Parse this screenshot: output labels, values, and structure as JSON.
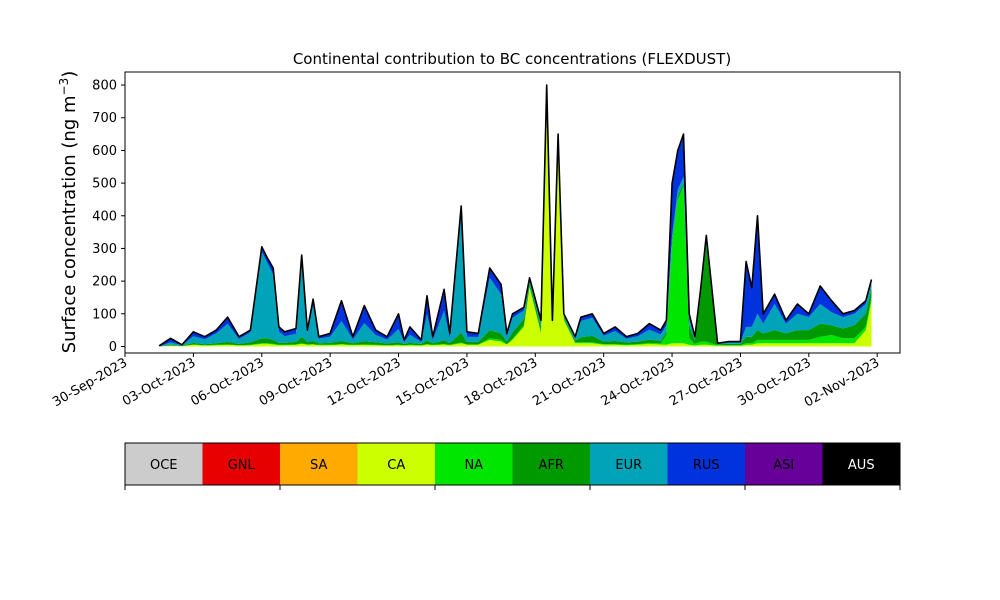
{
  "chart_data": {
    "type": "area",
    "stacked": true,
    "title": "Continental contribution to BC concentrations (FLEXDUST)",
    "ylabel": "Surface concentration (ng m",
    "ylabel_superscript": "−3",
    "ylabel_suffix": ")",
    "x_range": [
      "2023-09-30",
      "2023-11-03"
    ],
    "ylim": [
      -20,
      840
    ],
    "y_ticks": [
      0,
      100,
      200,
      300,
      400,
      500,
      600,
      700,
      800
    ],
    "x_ticks": [
      "2023-09-30",
      "2023-10-03",
      "2023-10-06",
      "2023-10-09",
      "2023-10-12",
      "2023-10-15",
      "2023-10-18",
      "2023-10-21",
      "2023-10-24",
      "2023-10-27",
      "2023-10-30",
      "2023-11-02"
    ],
    "x_tick_labels": [
      "30-Sep-2023",
      "03-Oct-2023",
      "06-Oct-2023",
      "09-Oct-2023",
      "12-Oct-2023",
      "15-Oct-2023",
      "18-Oct-2023",
      "21-Oct-2023",
      "24-Oct-2023",
      "27-Oct-2023",
      "30-Oct-2023",
      "02-Nov-2023"
    ],
    "grid": false,
    "legend": {
      "placement": "colorbar-below",
      "labels": [
        "OCE",
        "GNL",
        "SA",
        "CA",
        "NA",
        "AFR",
        "EUR",
        "RUS",
        "ASI",
        "AUS"
      ],
      "colors": [
        "#cccccc",
        "#e60000",
        "#ffaa00",
        "#ccff00",
        "#00e600",
        "#009900",
        "#00a3b8",
        "#0033dd",
        "#660099",
        "#000000"
      ]
    },
    "total_line_color": "#000000",
    "points": [
      [
        "2023-10-01T12:00",
        2,
        0,
        0,
        0,
        0,
        0,
        0,
        0,
        0,
        2
      ],
      [
        "2023-10-02T00:00",
        25,
        0,
        0,
        0,
        3,
        0,
        2,
        8,
        10,
        2
      ],
      [
        "2023-10-02T12:00",
        5,
        0,
        0,
        0,
        1,
        0,
        1,
        2,
        1,
        0
      ],
      [
        "2023-10-03T00:00",
        45,
        0,
        0,
        0,
        5,
        1,
        5,
        20,
        12,
        2
      ],
      [
        "2023-10-03T12:00",
        30,
        0,
        0,
        0,
        3,
        1,
        3,
        15,
        8,
        0
      ],
      [
        "2023-10-04T00:00",
        50,
        0,
        0,
        0,
        4,
        1,
        5,
        30,
        8,
        2
      ],
      [
        "2023-10-04T12:00",
        90,
        0,
        0,
        0,
        5,
        1,
        8,
        55,
        20,
        1
      ],
      [
        "2023-10-05T00:00",
        30,
        0,
        0,
        0,
        3,
        1,
        4,
        15,
        7,
        0
      ],
      [
        "2023-10-05T12:00",
        50,
        0,
        0,
        0,
        4,
        1,
        8,
        30,
        7,
        0
      ],
      [
        "2023-10-06T00:00",
        305,
        0,
        0,
        0,
        8,
        2,
        15,
        265,
        15,
        0
      ],
      [
        "2023-10-06T06:00",
        270,
        0,
        0,
        0,
        8,
        2,
        15,
        230,
        15,
        0
      ],
      [
        "2023-10-06T12:00",
        240,
        0,
        0,
        0,
        6,
        2,
        12,
        200,
        20,
        0
      ],
      [
        "2023-10-06T18:00",
        60,
        0,
        0,
        0,
        4,
        1,
        6,
        35,
        14,
        0
      ],
      [
        "2023-10-07T00:00",
        45,
        0,
        0,
        0,
        4,
        1,
        6,
        20,
        14,
        0
      ],
      [
        "2023-10-07T12:00",
        55,
        0,
        0,
        0,
        5,
        1,
        8,
        25,
        16,
        0
      ],
      [
        "2023-10-07T18:00",
        280,
        0,
        0,
        0,
        8,
        2,
        20,
        230,
        20,
        0
      ],
      [
        "2023-10-08T00:00",
        50,
        0,
        0,
        0,
        5,
        1,
        8,
        26,
        10,
        0
      ],
      [
        "2023-10-08T06:00",
        145,
        0,
        0,
        0,
        6,
        1,
        10,
        110,
        18,
        0
      ],
      [
        "2023-10-08T12:00",
        30,
        0,
        0,
        0,
        4,
        1,
        5,
        14,
        6,
        0
      ],
      [
        "2023-10-09T00:00",
        40,
        0,
        0,
        0,
        4,
        1,
        6,
        19,
        10,
        0
      ],
      [
        "2023-10-09T12:00",
        140,
        0,
        0,
        0,
        6,
        1,
        10,
        60,
        63,
        0
      ],
      [
        "2023-10-10T00:00",
        30,
        0,
        0,
        0,
        4,
        1,
        5,
        12,
        8,
        0
      ],
      [
        "2023-10-10T12:00",
        125,
        0,
        0,
        0,
        5,
        1,
        10,
        55,
        54,
        0
      ],
      [
        "2023-10-11T00:00",
        50,
        0,
        0,
        0,
        4,
        1,
        8,
        22,
        15,
        0
      ],
      [
        "2023-10-11T12:00",
        30,
        0,
        0,
        0,
        3,
        1,
        5,
        12,
        9,
        0
      ],
      [
        "2023-10-12T00:00",
        100,
        0,
        0,
        0,
        4,
        1,
        8,
        40,
        47,
        0
      ],
      [
        "2023-10-12T06:00",
        20,
        0,
        0,
        0,
        3,
        1,
        4,
        6,
        6,
        0
      ],
      [
        "2023-10-12T12:00",
        60,
        0,
        0,
        0,
        4,
        1,
        6,
        25,
        24,
        0
      ],
      [
        "2023-10-13T00:00",
        20,
        0,
        0,
        0,
        3,
        1,
        4,
        6,
        6,
        0
      ],
      [
        "2023-10-13T06:00",
        155,
        0,
        0,
        0,
        6,
        1,
        12,
        80,
        56,
        0
      ],
      [
        "2023-10-13T12:00",
        30,
        0,
        0,
        0,
        4,
        1,
        5,
        10,
        10,
        0
      ],
      [
        "2023-10-14T00:00",
        175,
        0,
        0,
        0,
        6,
        1,
        12,
        90,
        66,
        0
      ],
      [
        "2023-10-14T06:00",
        40,
        0,
        0,
        0,
        4,
        1,
        6,
        14,
        15,
        0
      ],
      [
        "2023-10-14T18:00",
        430,
        0,
        0,
        0,
        10,
        2,
        30,
        360,
        28,
        0
      ],
      [
        "2023-10-15T00:00",
        45,
        0,
        0,
        0,
        5,
        1,
        8,
        16,
        15,
        0
      ],
      [
        "2023-10-15T12:00",
        40,
        0,
        0,
        0,
        5,
        1,
        8,
        15,
        11,
        0
      ],
      [
        "2023-10-16T00:00",
        240,
        0,
        0,
        0,
        20,
        5,
        25,
        160,
        30,
        0
      ],
      [
        "2023-10-16T12:00",
        190,
        0,
        0,
        0,
        15,
        5,
        20,
        120,
        30,
        0
      ],
      [
        "2023-10-16T18:00",
        40,
        0,
        0,
        0,
        6,
        1,
        8,
        15,
        10,
        0
      ],
      [
        "2023-10-17T00:00",
        100,
        0,
        0,
        0,
        20,
        3,
        20,
        45,
        12,
        0
      ],
      [
        "2023-10-17T12:00",
        120,
        0,
        0,
        0,
        60,
        5,
        20,
        25,
        10,
        0
      ],
      [
        "2023-10-17T18:00",
        210,
        0,
        0,
        0,
        180,
        5,
        10,
        10,
        5,
        0
      ],
      [
        "2023-10-18T06:00",
        80,
        0,
        0,
        0,
        40,
        5,
        15,
        15,
        5,
        0
      ],
      [
        "2023-10-18T12:00",
        800,
        0,
        0,
        0,
        780,
        5,
        5,
        5,
        5,
        0
      ],
      [
        "2023-10-18T18:00",
        80,
        0,
        0,
        0,
        60,
        5,
        5,
        5,
        5,
        0
      ],
      [
        "2023-10-19T00:00",
        650,
        0,
        0,
        0,
        630,
        5,
        5,
        5,
        5,
        0
      ],
      [
        "2023-10-19T06:00",
        100,
        0,
        0,
        0,
        80,
        5,
        5,
        5,
        5,
        0
      ],
      [
        "2023-10-19T18:00",
        30,
        0,
        0,
        0,
        10,
        3,
        5,
        6,
        6,
        0
      ],
      [
        "2023-10-20T00:00",
        90,
        0,
        0,
        0,
        10,
        3,
        15,
        50,
        12,
        0
      ],
      [
        "2023-10-20T12:00",
        100,
        0,
        0,
        0,
        10,
        3,
        20,
        55,
        12,
        0
      ],
      [
        "2023-10-21T00:00",
        40,
        0,
        0,
        0,
        5,
        2,
        8,
        18,
        7,
        0
      ],
      [
        "2023-10-21T12:00",
        60,
        0,
        0,
        0,
        5,
        2,
        10,
        30,
        13,
        0
      ],
      [
        "2023-10-22T00:00",
        30,
        0,
        0,
        0,
        4,
        2,
        6,
        12,
        6,
        0
      ],
      [
        "2023-10-22T12:00",
        40,
        0,
        0,
        0,
        5,
        2,
        8,
        16,
        9,
        0
      ],
      [
        "2023-10-23T00:00",
        70,
        0,
        0,
        0,
        8,
        3,
        10,
        30,
        19,
        0
      ],
      [
        "2023-10-23T12:00",
        50,
        0,
        0,
        0,
        6,
        3,
        8,
        20,
        13,
        0
      ],
      [
        "2023-10-23T18:00",
        80,
        0,
        0,
        0,
        5,
        30,
        10,
        20,
        15,
        0
      ],
      [
        "2023-10-24T00:00",
        500,
        0,
        0,
        0,
        10,
        300,
        10,
        20,
        160,
        0
      ],
      [
        "2023-10-24T06:00",
        600,
        0,
        0,
        0,
        10,
        440,
        10,
        20,
        120,
        0
      ],
      [
        "2023-10-24T12:00",
        650,
        0,
        0,
        0,
        10,
        480,
        10,
        20,
        130,
        0
      ],
      [
        "2023-10-24T18:00",
        100,
        0,
        0,
        0,
        5,
        20,
        40,
        20,
        15,
        0
      ],
      [
        "2023-10-25T00:00",
        30,
        0,
        0,
        0,
        3,
        5,
        10,
        6,
        6,
        0
      ],
      [
        "2023-10-25T06:00",
        175,
        0,
        0,
        0,
        5,
        10,
        140,
        10,
        10,
        0
      ],
      [
        "2023-10-25T12:00",
        340,
        0,
        0,
        0,
        5,
        10,
        300,
        15,
        10,
        0
      ],
      [
        "2023-10-26T00:00",
        10,
        0,
        0,
        0,
        2,
        2,
        3,
        2,
        1,
        0
      ],
      [
        "2023-10-26T12:00",
        15,
        0,
        0,
        0,
        2,
        2,
        4,
        4,
        3,
        0
      ],
      [
        "2023-10-27T00:00",
        15,
        0,
        0,
        0,
        2,
        2,
        4,
        4,
        3,
        0
      ],
      [
        "2023-10-27T06:00",
        260,
        0,
        0,
        0,
        5,
        5,
        20,
        30,
        200,
        0
      ],
      [
        "2023-10-27T12:00",
        180,
        0,
        0,
        0,
        5,
        5,
        20,
        30,
        120,
        0
      ],
      [
        "2023-10-27T18:00",
        400,
        0,
        0,
        0,
        10,
        10,
        30,
        50,
        300,
        0
      ],
      [
        "2023-10-28T00:00",
        100,
        0,
        0,
        0,
        10,
        10,
        20,
        30,
        30,
        0
      ],
      [
        "2023-10-28T12:00",
        160,
        0,
        0,
        0,
        10,
        10,
        30,
        80,
        30,
        0
      ],
      [
        "2023-10-29T00:00",
        80,
        0,
        0,
        0,
        10,
        10,
        20,
        30,
        10,
        0
      ],
      [
        "2023-10-29T12:00",
        130,
        0,
        0,
        0,
        10,
        10,
        30,
        50,
        30,
        0
      ],
      [
        "2023-10-30T00:00",
        100,
        0,
        0,
        0,
        10,
        10,
        30,
        40,
        10,
        0
      ],
      [
        "2023-10-30T12:00",
        185,
        0,
        0,
        0,
        10,
        20,
        40,
        60,
        55,
        0
      ],
      [
        "2023-10-31T00:00",
        140,
        0,
        0,
        0,
        10,
        25,
        30,
        40,
        35,
        0
      ],
      [
        "2023-10-31T12:00",
        100,
        0,
        0,
        0,
        10,
        15,
        30,
        35,
        10,
        0
      ],
      [
        "2023-11-01T00:00",
        110,
        0,
        0,
        0,
        10,
        15,
        40,
        35,
        10,
        0
      ],
      [
        "2023-11-01T12:00",
        140,
        0,
        0,
        0,
        50,
        10,
        40,
        30,
        10,
        0
      ],
      [
        "2023-11-01T18:00",
        205,
        0,
        0,
        0,
        140,
        10,
        30,
        15,
        10,
        0
      ]
    ]
  }
}
